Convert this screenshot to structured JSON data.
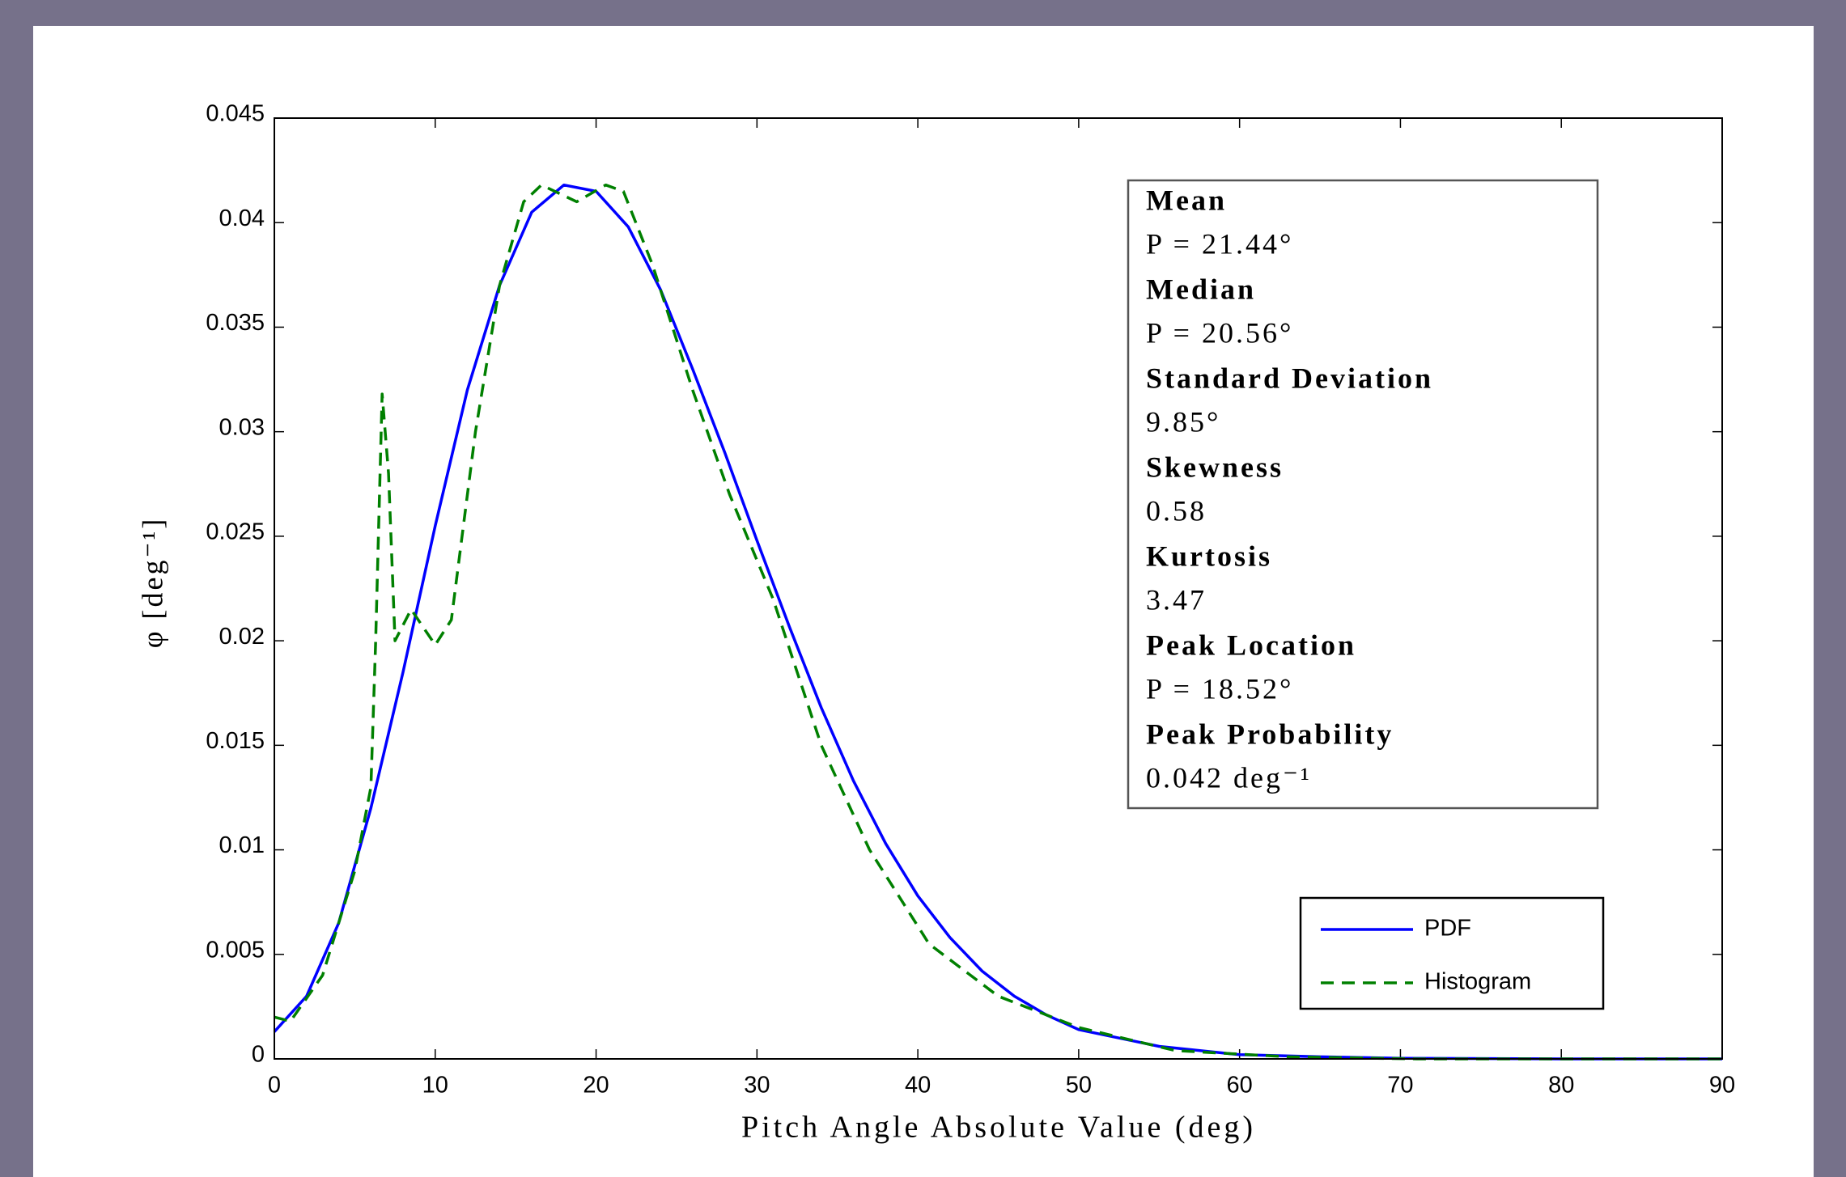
{
  "chart_data": {
    "type": "line",
    "xlabel": "Pitch Angle Absolute Value (deg)",
    "ylabel": "φ [deg⁻¹]",
    "xlim": [
      0,
      90
    ],
    "xticks": [
      0,
      10,
      20,
      30,
      40,
      50,
      60,
      70,
      80,
      90
    ],
    "ylim": [
      0,
      0.045
    ],
    "yticks": [
      0,
      0.005,
      0.01,
      0.015,
      0.02,
      0.025,
      0.03,
      0.035,
      0.04,
      0.045
    ],
    "grid": false,
    "legend": "lower right",
    "series": [
      {
        "name": "PDF",
        "color": "#0000ff",
        "style": "solid",
        "x": [
          0,
          2,
          4,
          6,
          8,
          10,
          12,
          14,
          16,
          18,
          20,
          22,
          24,
          26,
          28,
          30,
          32,
          34,
          36,
          38,
          40,
          42,
          44,
          46,
          48,
          50,
          55,
          60,
          65,
          70,
          80,
          90
        ],
        "values": [
          0.0013,
          0.003,
          0.0065,
          0.012,
          0.0185,
          0.0255,
          0.032,
          0.037,
          0.0405,
          0.0418,
          0.0415,
          0.0398,
          0.0368,
          0.033,
          0.029,
          0.0248,
          0.0207,
          0.0168,
          0.0133,
          0.0103,
          0.0078,
          0.0058,
          0.0042,
          0.003,
          0.0021,
          0.0014,
          0.0006,
          0.0002,
          0.0001,
          3e-05,
          0,
          0
        ]
      },
      {
        "name": "Histogram",
        "color": "#008000",
        "style": "dashed",
        "x": [
          0,
          1,
          3,
          5,
          6,
          6.3,
          6.7,
          7.1,
          7.5,
          8.5,
          10,
          11,
          12.5,
          14,
          15.5,
          16.6,
          18.8,
          20.6,
          21.7,
          23.5,
          26,
          28.3,
          31,
          34,
          37,
          40.7,
          45,
          50,
          56,
          63,
          71,
          90
        ],
        "values": [
          0.002,
          0.0018,
          0.004,
          0.009,
          0.013,
          0.02,
          0.0318,
          0.028,
          0.02,
          0.0215,
          0.0198,
          0.021,
          0.03,
          0.037,
          0.041,
          0.0418,
          0.041,
          0.0418,
          0.0415,
          0.038,
          0.032,
          0.027,
          0.022,
          0.015,
          0.01,
          0.0055,
          0.003,
          0.0015,
          0.0004,
          0.0001,
          0,
          0
        ]
      }
    ],
    "stats": [
      {
        "label": "Mean",
        "value": "P = 21.44°"
      },
      {
        "label": "Median",
        "value": "P = 20.56°"
      },
      {
        "label": "Standard Deviation",
        "value": "9.85°"
      },
      {
        "label": "Skewness",
        "value": "0.58"
      },
      {
        "label": "Kurtosis",
        "value": "3.47"
      },
      {
        "label": "Peak Location",
        "value": "P = 18.52°"
      },
      {
        "label": "Peak Probability",
        "value": "0.042 deg⁻¹"
      }
    ]
  }
}
